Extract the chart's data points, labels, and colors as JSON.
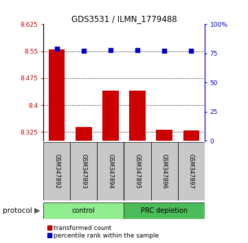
{
  "title": "GDS3531 / ILMN_1779488",
  "samples": [
    "GSM347892",
    "GSM347893",
    "GSM347894",
    "GSM347895",
    "GSM347896",
    "GSM347897"
  ],
  "red_values": [
    8.555,
    8.338,
    8.44,
    8.44,
    8.332,
    8.33
  ],
  "blue_values": [
    79,
    77,
    78,
    78,
    77,
    77
  ],
  "ylim_left": [
    8.3,
    8.625
  ],
  "ylim_right": [
    0,
    100
  ],
  "yticks_left": [
    8.325,
    8.4,
    8.475,
    8.55,
    8.625
  ],
  "yticks_right": [
    0,
    25,
    50,
    75,
    100
  ],
  "ytick_labels_left": [
    "8.325",
    "8.4",
    "8.475",
    "8.55",
    "8.625"
  ],
  "ytick_labels_right": [
    "0",
    "25",
    "50",
    "75",
    "100%"
  ],
  "bar_color": "#CC0000",
  "dot_color": "#0000CC",
  "bar_width": 0.6,
  "dot_size": 25,
  "sample_box_color": "#C8C8C8",
  "left_tick_color": "#CC0000",
  "right_tick_color": "#0000CC",
  "control_color": "#90EE90",
  "prc_color": "#4CBB5A",
  "protocol_label": "protocol",
  "legend_items": [
    {
      "color": "#CC0000",
      "label": "transformed count"
    },
    {
      "color": "#0000CC",
      "label": "percentile rank within the sample"
    }
  ]
}
